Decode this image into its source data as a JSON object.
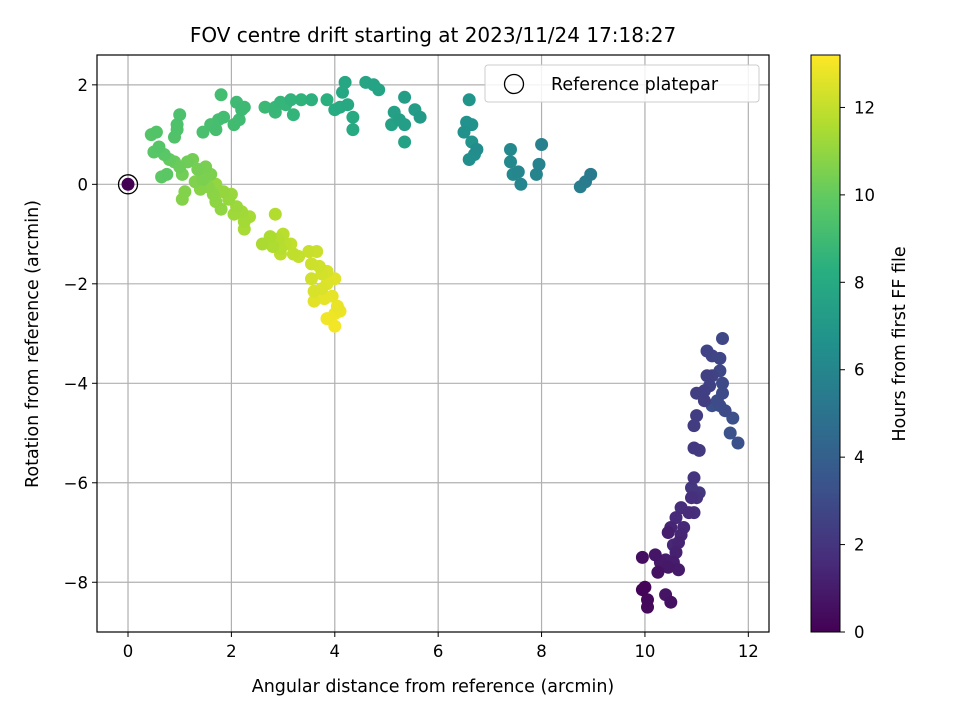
{
  "chart_data": {
    "type": "scatter",
    "title": "FOV centre drift starting at 2023/11/24 17:18:27",
    "xlabel": "Angular distance from reference (arcmin)",
    "ylabel": "Rotation from reference (arcmin)",
    "xlim": [
      -0.6,
      12.4
    ],
    "ylim": [
      -9.0,
      2.6
    ],
    "xticks": [
      0,
      2,
      4,
      6,
      8,
      10,
      12
    ],
    "xtick_labels": [
      "0",
      "2",
      "4",
      "6",
      "8",
      "10",
      "12"
    ],
    "yticks": [
      -8,
      -6,
      -4,
      -2,
      0,
      2
    ],
    "ytick_labels": [
      "−8",
      "−6",
      "−4",
      "−2",
      "0",
      "2"
    ],
    "grid": true,
    "colormap": "viridis",
    "colorbar": {
      "label": "Hours from first FF file",
      "range": [
        0,
        13.2
      ],
      "ticks": [
        0,
        2,
        4,
        6,
        8,
        10,
        12
      ],
      "tick_labels": [
        "0",
        "2",
        "4",
        "6",
        "8",
        "10",
        "12"
      ]
    },
    "legend": {
      "position": "top-right",
      "entries": [
        "Reference platepar"
      ]
    },
    "reference_point": {
      "x": 0,
      "y": 0,
      "marker": "open-circle"
    },
    "points": [
      [
        0.0,
        0.0,
        0.0
      ],
      [
        9.95,
        -8.15,
        0.15
      ],
      [
        10.0,
        -8.1,
        0.2
      ],
      [
        10.05,
        -8.35,
        0.3
      ],
      [
        10.05,
        -8.5,
        0.35
      ],
      [
        9.95,
        -7.5,
        0.5
      ],
      [
        10.25,
        -7.8,
        0.6
      ],
      [
        10.5,
        -8.4,
        0.65
      ],
      [
        10.4,
        -8.25,
        0.7
      ],
      [
        10.2,
        -7.45,
        0.8
      ],
      [
        10.3,
        -7.6,
        0.9
      ],
      [
        10.55,
        -7.6,
        1.0
      ],
      [
        10.4,
        -7.55,
        1.05
      ],
      [
        10.45,
        -7.0,
        1.1
      ],
      [
        10.6,
        -7.4,
        1.2
      ],
      [
        10.65,
        -7.2,
        1.3
      ],
      [
        10.5,
        -6.9,
        1.35
      ],
      [
        10.7,
        -7.05,
        1.4
      ],
      [
        10.75,
        -6.9,
        1.5
      ],
      [
        10.6,
        -6.7,
        1.55
      ],
      [
        10.85,
        -6.6,
        1.6
      ],
      [
        10.7,
        -6.5,
        1.7
      ],
      [
        10.9,
        -6.3,
        1.75
      ],
      [
        10.95,
        -6.6,
        1.8
      ],
      [
        11.0,
        -6.3,
        1.9
      ],
      [
        10.95,
        -5.9,
        2.0
      ],
      [
        10.9,
        -6.1,
        2.05
      ],
      [
        11.05,
        -6.2,
        2.1
      ],
      [
        10.55,
        -7.25,
        1.45
      ],
      [
        10.45,
        -7.7,
        0.85
      ],
      [
        10.65,
        -7.75,
        0.95
      ],
      [
        10.95,
        -5.3,
        2.2
      ],
      [
        11.05,
        -5.35,
        2.25
      ],
      [
        10.95,
        -4.85,
        2.3
      ],
      [
        11.0,
        -4.65,
        2.35
      ],
      [
        11.0,
        -4.2,
        2.4
      ],
      [
        11.15,
        -4.15,
        2.45
      ],
      [
        11.2,
        -3.85,
        2.5
      ],
      [
        11.25,
        -4.05,
        2.55
      ],
      [
        11.3,
        -3.85,
        2.6
      ],
      [
        11.2,
        -3.35,
        2.65
      ],
      [
        11.3,
        -3.45,
        2.7
      ],
      [
        11.45,
        -3.5,
        2.75
      ],
      [
        11.5,
        -3.1,
        2.8
      ],
      [
        11.45,
        -3.75,
        2.85
      ],
      [
        11.5,
        -4.0,
        2.9
      ],
      [
        11.5,
        -4.2,
        2.95
      ],
      [
        11.4,
        -4.35,
        3.0
      ],
      [
        11.55,
        -4.55,
        3.05
      ],
      [
        11.45,
        -4.45,
        3.1
      ],
      [
        11.3,
        -4.45,
        3.15
      ],
      [
        11.7,
        -4.7,
        3.2
      ],
      [
        11.8,
        -5.2,
        3.25
      ],
      [
        11.65,
        -5.0,
        3.3
      ],
      [
        11.15,
        -4.35,
        2.4
      ],
      [
        8.95,
        0.2,
        5.4
      ],
      [
        8.85,
        0.05,
        5.5
      ],
      [
        8.75,
        -0.05,
        5.6
      ],
      [
        8.0,
        0.8,
        5.7
      ],
      [
        7.95,
        0.4,
        5.8
      ],
      [
        7.9,
        0.2,
        5.9
      ],
      [
        7.6,
        0.0,
        6.0
      ],
      [
        7.55,
        0.25,
        6.05
      ],
      [
        7.45,
        0.2,
        6.1
      ],
      [
        7.4,
        0.45,
        6.15
      ],
      [
        7.4,
        0.7,
        6.2
      ],
      [
        6.75,
        0.7,
        6.4
      ],
      [
        6.7,
        0.6,
        6.5
      ],
      [
        6.6,
        0.5,
        6.55
      ],
      [
        6.5,
        1.05,
        6.6
      ],
      [
        6.55,
        1.25,
        6.65
      ],
      [
        6.65,
        1.2,
        6.7
      ],
      [
        6.65,
        0.85,
        6.75
      ],
      [
        6.6,
        1.7,
        6.8
      ],
      [
        5.65,
        1.35,
        7.1
      ],
      [
        5.55,
        1.5,
        7.2
      ],
      [
        5.35,
        1.75,
        7.3
      ],
      [
        5.35,
        1.2,
        7.35
      ],
      [
        5.25,
        1.3,
        7.4
      ],
      [
        5.15,
        1.45,
        7.45
      ],
      [
        5.1,
        1.2,
        7.5
      ],
      [
        5.35,
        0.85,
        7.55
      ],
      [
        4.85,
        1.9,
        7.6
      ],
      [
        4.75,
        2.0,
        7.65
      ],
      [
        4.6,
        2.05,
        7.7
      ],
      [
        4.2,
        2.05,
        7.8
      ],
      [
        4.15,
        1.85,
        7.85
      ],
      [
        4.25,
        1.6,
        7.9
      ],
      [
        4.1,
        1.55,
        7.95
      ],
      [
        4.35,
        1.35,
        8.0
      ],
      [
        4.35,
        1.1,
        8.05
      ],
      [
        4.0,
        1.5,
        8.1
      ],
      [
        3.85,
        1.7,
        8.3
      ],
      [
        3.55,
        1.7,
        8.4
      ],
      [
        3.35,
        1.7,
        8.5
      ],
      [
        3.15,
        1.7,
        8.55
      ],
      [
        3.2,
        1.4,
        8.6
      ],
      [
        3.05,
        1.6,
        8.65
      ],
      [
        2.95,
        1.65,
        8.7
      ],
      [
        2.85,
        1.55,
        8.75
      ],
      [
        2.85,
        1.45,
        8.8
      ],
      [
        2.65,
        1.55,
        8.85
      ],
      [
        2.2,
        1.5,
        8.9
      ],
      [
        2.1,
        1.65,
        8.95
      ],
      [
        2.15,
        1.3,
        9.0
      ],
      [
        2.05,
        1.2,
        9.05
      ],
      [
        1.85,
        1.35,
        9.1
      ],
      [
        1.8,
        1.8,
        9.15
      ],
      [
        1.7,
        1.1,
        9.2
      ],
      [
        1.6,
        1.2,
        9.25
      ],
      [
        1.45,
        1.05,
        9.3
      ],
      [
        1.0,
        1.4,
        9.35
      ],
      [
        0.95,
        1.2,
        9.4
      ],
      [
        0.95,
        1.1,
        9.45
      ],
      [
        0.9,
        0.95,
        9.5
      ],
      [
        0.55,
        1.05,
        9.55
      ],
      [
        0.45,
        1.0,
        9.6
      ],
      [
        0.6,
        0.75,
        9.65
      ],
      [
        0.5,
        0.65,
        9.7
      ],
      [
        0.7,
        0.6,
        9.75
      ],
      [
        0.75,
        0.2,
        9.8
      ],
      [
        0.65,
        0.15,
        9.85
      ],
      [
        1.75,
        1.3,
        9.2
      ],
      [
        2.25,
        1.55,
        8.9
      ],
      [
        0.8,
        0.5,
        10.0
      ],
      [
        0.9,
        0.45,
        10.1
      ],
      [
        1.0,
        0.35,
        10.2
      ],
      [
        1.15,
        0.45,
        10.25
      ],
      [
        1.05,
        0.2,
        10.3
      ],
      [
        1.25,
        0.5,
        10.35
      ],
      [
        1.35,
        0.3,
        10.4
      ],
      [
        1.5,
        0.35,
        10.45
      ],
      [
        1.45,
        0.1,
        10.5
      ],
      [
        1.6,
        0.2,
        10.55
      ],
      [
        1.3,
        0.05,
        10.6
      ],
      [
        1.1,
        -0.15,
        10.65
      ],
      [
        1.05,
        -0.3,
        10.7
      ],
      [
        1.4,
        -0.1,
        10.75
      ],
      [
        1.55,
        -0.05,
        10.8
      ],
      [
        1.65,
        -0.2,
        10.85
      ],
      [
        1.7,
        -0.35,
        10.9
      ],
      [
        1.8,
        -0.5,
        10.95
      ],
      [
        1.7,
        0.0,
        11.0
      ],
      [
        1.85,
        -0.15,
        11.05
      ],
      [
        1.95,
        -0.3,
        11.1
      ],
      [
        2.0,
        -0.2,
        11.15
      ],
      [
        2.1,
        -0.45,
        11.2
      ],
      [
        2.05,
        -0.6,
        11.25
      ],
      [
        2.2,
        -0.55,
        11.3
      ],
      [
        2.25,
        -0.75,
        11.35
      ],
      [
        2.35,
        -0.65,
        11.4
      ],
      [
        2.25,
        -0.9,
        11.45
      ],
      [
        2.6,
        -1.2,
        11.5
      ],
      [
        2.75,
        -1.05,
        11.55
      ],
      [
        2.8,
        -1.25,
        11.6
      ],
      [
        2.85,
        -0.6,
        11.65
      ],
      [
        2.9,
        -1.1,
        11.7
      ],
      [
        2.95,
        -1.3,
        11.75
      ],
      [
        3.0,
        -1.0,
        11.8
      ],
      [
        3.05,
        -1.2,
        11.85
      ],
      [
        2.95,
        -1.4,
        11.9
      ],
      [
        3.2,
        -1.4,
        11.95
      ],
      [
        3.15,
        -1.2,
        12.0
      ],
      [
        3.3,
        -1.45,
        12.05
      ],
      [
        3.5,
        -1.35,
        12.1
      ],
      [
        3.65,
        -1.35,
        12.15
      ],
      [
        3.55,
        -1.6,
        12.2
      ],
      [
        3.7,
        -1.65,
        12.25
      ],
      [
        3.55,
        -1.9,
        12.3
      ],
      [
        3.75,
        -1.8,
        12.35
      ],
      [
        3.85,
        -1.75,
        12.4
      ],
      [
        3.6,
        -2.15,
        12.45
      ],
      [
        3.75,
        -2.1,
        12.5
      ],
      [
        3.85,
        -2.0,
        12.55
      ],
      [
        4.0,
        -1.9,
        12.6
      ],
      [
        3.6,
        -2.35,
        12.65
      ],
      [
        3.8,
        -2.3,
        12.7
      ],
      [
        3.95,
        -2.25,
        12.75
      ],
      [
        4.05,
        -2.45,
        12.8
      ],
      [
        4.1,
        -2.55,
        12.85
      ],
      [
        4.0,
        -2.6,
        12.9
      ],
      [
        3.85,
        -2.7,
        12.95
      ],
      [
        4.0,
        -2.85,
        13.0
      ],
      [
        3.7,
        -2.2,
        13.05
      ]
    ]
  }
}
